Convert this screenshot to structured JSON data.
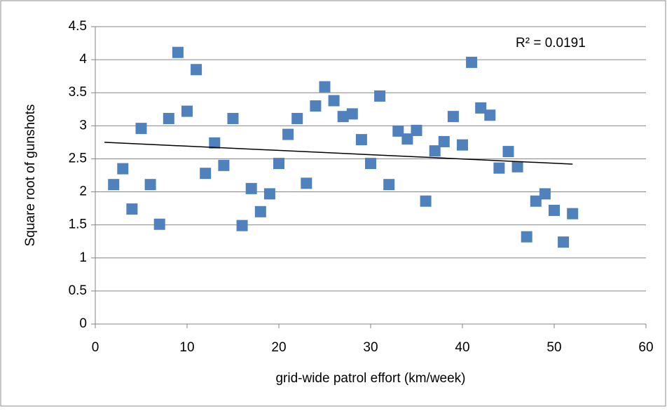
{
  "chart_data": {
    "type": "scatter",
    "x_label": "grid-wide patrol effort (km/week)",
    "y_label": "Square root of gunshots",
    "annotation": "R² = 0.0191",
    "series": [
      {
        "color": "#4f81bd",
        "x": [
          2,
          3,
          4,
          5,
          6,
          7,
          8,
          9,
          10,
          11,
          12,
          13,
          14,
          15,
          16,
          17,
          18,
          19,
          20,
          21,
          22,
          23,
          24,
          25,
          26,
          27,
          28,
          29,
          30,
          31,
          32,
          33,
          34,
          35,
          36,
          37,
          38,
          39,
          40,
          41,
          42,
          43,
          44,
          45,
          46,
          47,
          48,
          49,
          50,
          51,
          52
        ],
        "values": [
          2.11,
          2.35,
          1.74,
          2.96,
          2.11,
          1.51,
          3.11,
          4.11,
          3.22,
          3.85,
          2.28,
          2.74,
          2.4,
          3.11,
          1.49,
          2.05,
          1.7,
          1.97,
          2.43,
          2.87,
          3.11,
          2.13,
          3.3,
          3.59,
          3.38,
          3.14,
          3.18,
          2.79,
          2.43,
          3.45,
          2.11,
          2.92,
          2.8,
          2.93,
          1.86,
          2.62,
          2.76,
          3.14,
          2.71,
          3.96,
          3.27,
          3.16,
          2.36,
          2.61,
          2.38,
          1.32,
          1.86,
          1.97,
          1.72,
          1.24,
          1.67
        ]
      }
    ],
    "trendline": {
      "color": "#000000",
      "x": [
        1,
        52
      ],
      "values": [
        2.75,
        2.42
      ]
    },
    "xlim": [
      0,
      60
    ],
    "xticks": [
      0,
      10,
      20,
      30,
      40,
      50,
      60
    ],
    "ylim": [
      0,
      4.5
    ],
    "yticks": [
      0,
      0.5,
      1,
      1.5,
      2,
      2.5,
      3,
      3.5,
      4,
      4.5
    ],
    "grid": true
  }
}
